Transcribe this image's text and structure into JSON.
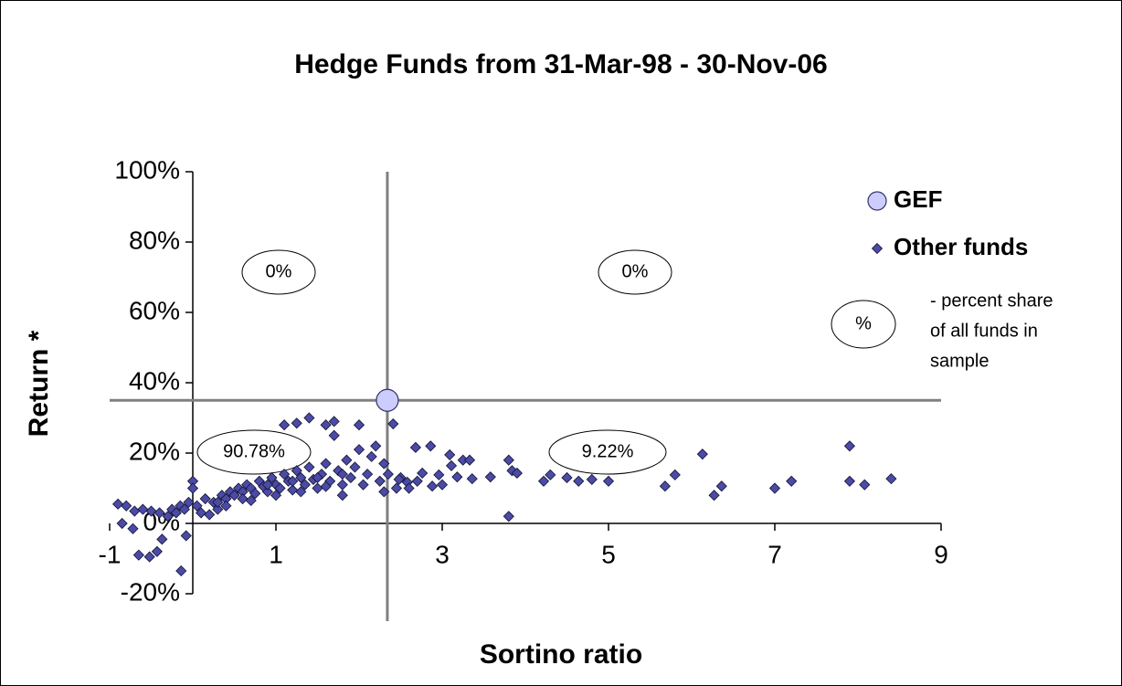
{
  "chart_data": {
    "type": "scatter",
    "title": "Hedge Funds from 31-Mar-98 - 30-Nov-06",
    "xlabel": "Sortino ratio",
    "ylabel": "Return *",
    "xlim": [
      -1,
      9
    ],
    "ylim": [
      -20,
      100
    ],
    "xticks": [
      -1,
      1,
      3,
      5,
      7,
      9
    ],
    "yticks": [
      {
        "value": -20,
        "label": "-20%"
      },
      {
        "value": 0,
        "label": "0%"
      },
      {
        "value": 20,
        "label": "20%"
      },
      {
        "value": 40,
        "label": "40%"
      },
      {
        "value": 60,
        "label": "60%"
      },
      {
        "value": 80,
        "label": "80%"
      },
      {
        "value": 100,
        "label": "100%"
      }
    ],
    "crosshair_color": "#808080",
    "series": [
      {
        "name": "GEF",
        "color": "#ccccff",
        "marker": "circle",
        "x": [
          2.34
        ],
        "values": [
          35
        ]
      },
      {
        "name": "Other funds",
        "color": "#4b4ba6",
        "marker": "diamond",
        "x": [
          -0.9,
          -0.8,
          -0.85,
          -0.72,
          -0.7,
          -0.6,
          -0.5,
          -0.4,
          -0.65,
          -0.52,
          -0.43,
          -0.37,
          -0.3,
          -0.25,
          -0.2,
          -0.15,
          -0.1,
          -0.14,
          -0.08,
          -0.05,
          0,
          0,
          0.05,
          0.1,
          0.2,
          0.15,
          0.25,
          0.3,
          0.35,
          0.4,
          0.45,
          0.5,
          0.55,
          0.6,
          0.65,
          0.7,
          0.75,
          0.8,
          0.85,
          0.9,
          0.95,
          1.0,
          1.05,
          1.1,
          1.1,
          1.15,
          1.2,
          1.25,
          1.25,
          1.3,
          1.35,
          1.4,
          1.4,
          1.45,
          1.5,
          1.55,
          1.6,
          1.6,
          1.65,
          1.7,
          1.7,
          1.75,
          1.8,
          1.8,
          1.85,
          1.9,
          1.95,
          2.0,
          2.0,
          2.05,
          2.1,
          2.15,
          2.2,
          2.25,
          2.3,
          2.3,
          2.35,
          2.41,
          2.45,
          2.5,
          2.58,
          2.48,
          2.68,
          2.76,
          2.86,
          2.88,
          2.96,
          3.09,
          3.11,
          3.18,
          3.25,
          3.33,
          3.36,
          3.58,
          3.8,
          3.8,
          3.84,
          3.9,
          4.22,
          4.3,
          4.5,
          4.64,
          4.8,
          5.0,
          5.68,
          5.8,
          6.13,
          6.27,
          6.36,
          7.0,
          7.2,
          7.9,
          7.9,
          8.08,
          8.4,
          0.3,
          0.6,
          0.9,
          1.2,
          1.5,
          1.8,
          1.0,
          1.3,
          0.7,
          0.4,
          1.6,
          2.6,
          2.7,
          3.0
        ],
        "values": [
          5.5,
          5,
          0,
          -1.5,
          3.5,
          4,
          3.5,
          3,
          -9,
          -9.5,
          -8,
          -4.5,
          2,
          4,
          3,
          5,
          4,
          -13.5,
          -3.5,
          6,
          12,
          10,
          5,
          3,
          2.5,
          7,
          6,
          4,
          8,
          7,
          9,
          8,
          10,
          9,
          11,
          10,
          8.5,
          12,
          10.5,
          9,
          13,
          11,
          10,
          14,
          28,
          12,
          9.5,
          15,
          28.5,
          13,
          11,
          30,
          16,
          12.5,
          10,
          14,
          17,
          28,
          12,
          29,
          25,
          15,
          11,
          8,
          18,
          13,
          16,
          21,
          28,
          11,
          14,
          19,
          22,
          12,
          17,
          9,
          14,
          28.3,
          10,
          13,
          11.7,
          12.5,
          21.6,
          14.3,
          22,
          10.6,
          13.8,
          19.5,
          16.4,
          13.2,
          18,
          18,
          12.7,
          13.2,
          2,
          18,
          15,
          14.3,
          12,
          13.8,
          13,
          12,
          12.5,
          12,
          10.6,
          13.8,
          19.7,
          8,
          10.6,
          10,
          12,
          22,
          12,
          11,
          12.7,
          6,
          7,
          11,
          12,
          13,
          14,
          8,
          9,
          6.5,
          5,
          10.5,
          10,
          12,
          11
        ]
      }
    ],
    "annotations": [
      "0%",
      "0%",
      "90.78%",
      "9.22%"
    ],
    "legend_note": {
      "symbol": "%",
      "lines": [
        "- percent share",
        "of all funds in",
        "sample"
      ]
    }
  }
}
